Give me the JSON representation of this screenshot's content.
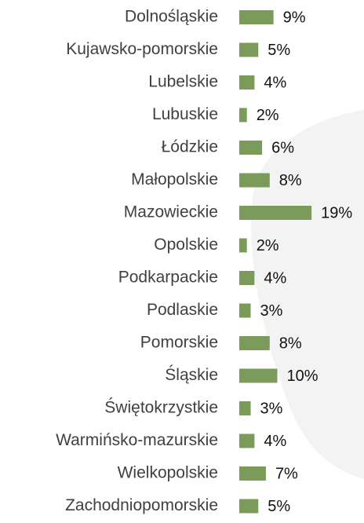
{
  "chart_data": {
    "type": "bar",
    "orientation": "horizontal",
    "categories": [
      "Dolnośląskie",
      "Kujawsko-pomorskie",
      "Lubelskie",
      "Lubuskie",
      "Łódzkie",
      "Małopolskie",
      "Mazowieckie",
      "Opolskie",
      "Podkarpackie",
      "Podlaskie",
      "Pomorskie",
      "Śląskie",
      "Świętokrzystkie",
      "Warmińsko-mazurskie",
      "Wielkopolskie",
      "Zachodniopomorskie"
    ],
    "values": [
      9,
      5,
      4,
      2,
      6,
      8,
      19,
      2,
      4,
      3,
      8,
      10,
      3,
      4,
      7,
      5
    ],
    "value_labels": [
      "9%",
      "5%",
      "4%",
      "2%",
      "6%",
      "8%",
      "19%",
      "2%",
      "4%",
      "3%",
      "8%",
      "10%",
      "3%",
      "4%",
      "7%",
      "5%"
    ],
    "color": "#7b9b5b"
  }
}
